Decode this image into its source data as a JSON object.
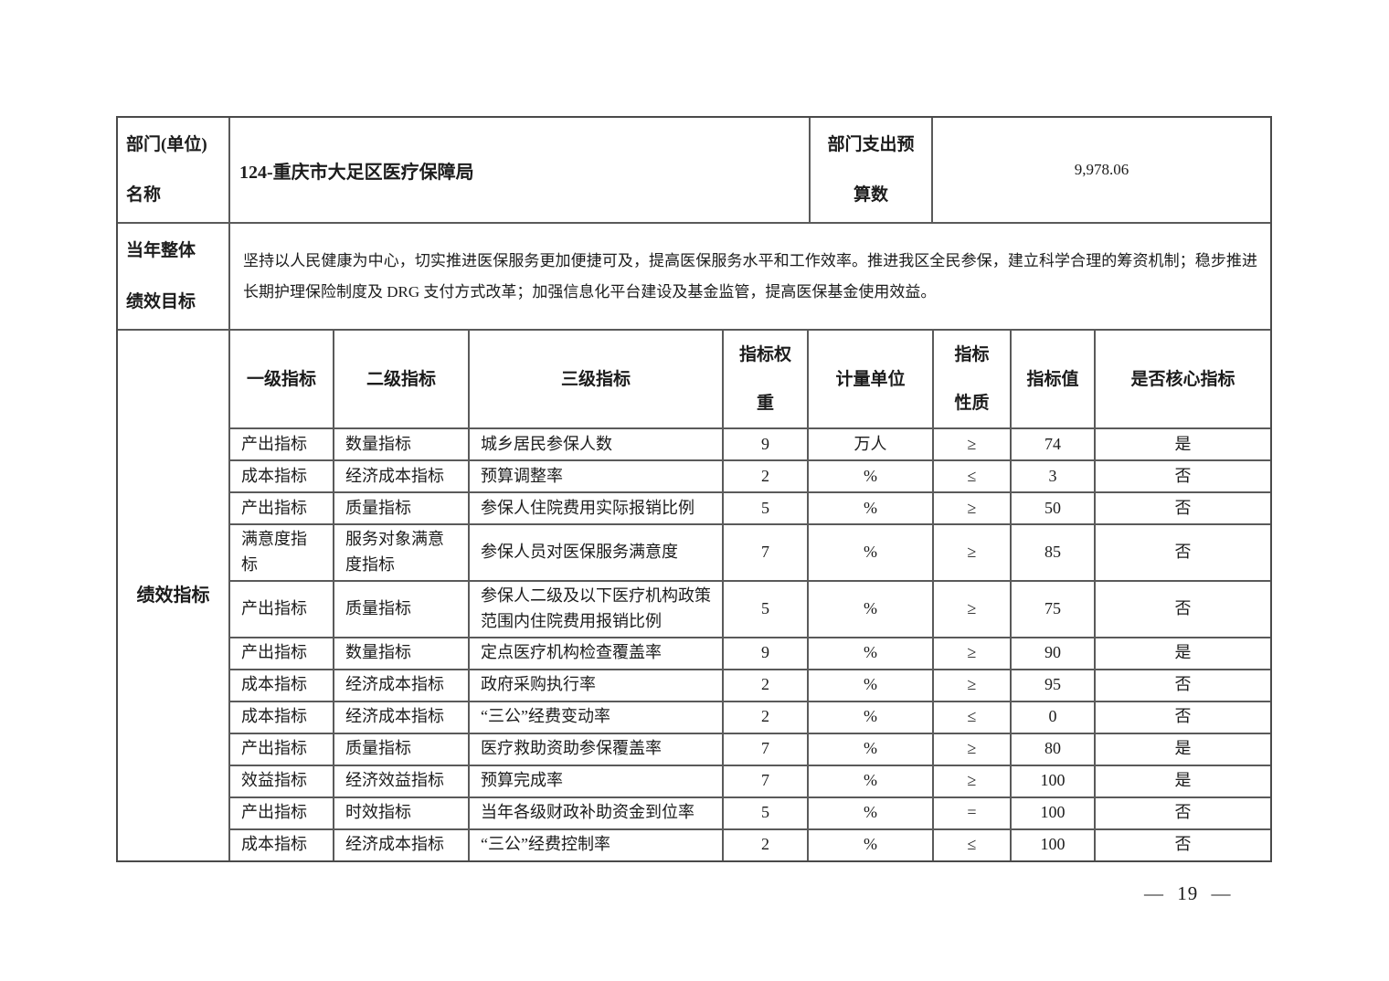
{
  "colors": {
    "border": "#5a5a5a",
    "text": "#1c1c1c",
    "background": "#ffffff"
  },
  "header": {
    "dept_label": "部门(单位)\n名称",
    "dept_value": "124-重庆市大足区医疗保障局",
    "budget_label": "部门支出预\n算数",
    "budget_value": "9,978.06",
    "goal_label": "当年整体\n绩效目标",
    "goal_text": "坚持以人民健康为中心，切实推进医保服务更加便捷可及，提高医保服务水平和工作效率。推进我区全民参保，建立科学合理的筹资机制；稳步推进长期护理保险制度及 DRG 支付方式改革；加强信息化平台建设及基金监管，提高医保基金使用效益。",
    "indicators_label": "绩效指标"
  },
  "indicators": {
    "columns": [
      "一级指标",
      "二级指标",
      "三级指标",
      "指标权\n重",
      "计量单位",
      "指标\n性质",
      "指标值",
      "是否核心指标"
    ],
    "rows": [
      [
        "产出指标",
        "数量指标",
        "城乡居民参保人数",
        "9",
        "万人",
        "≥",
        "74",
        "是"
      ],
      [
        "成本指标",
        "经济成本指标",
        "预算调整率",
        "2",
        "%",
        "≤",
        "3",
        "否"
      ],
      [
        "产出指标",
        "质量指标",
        "参保人住院费用实际报销比例",
        "5",
        "%",
        "≥",
        "50",
        "否"
      ],
      [
        "满意度指标",
        "服务对象满意度指标",
        "参保人员对医保服务满意度",
        "7",
        "%",
        "≥",
        "85",
        "否"
      ],
      [
        "产出指标",
        "质量指标",
        "参保人二级及以下医疗机构政策范围内住院费用报销比例",
        "5",
        "%",
        "≥",
        "75",
        "否"
      ],
      [
        "产出指标",
        "数量指标",
        "定点医疗机构检查覆盖率",
        "9",
        "%",
        "≥",
        "90",
        "是"
      ],
      [
        "成本指标",
        "经济成本指标",
        "政府采购执行率",
        "2",
        "%",
        "≥",
        "95",
        "否"
      ],
      [
        "成本指标",
        "经济成本指标",
        "“三公”经费变动率",
        "2",
        "%",
        "≤",
        "0",
        "否"
      ],
      [
        "产出指标",
        "质量指标",
        "医疗救助资助参保覆盖率",
        "7",
        "%",
        "≥",
        "80",
        "是"
      ],
      [
        "效益指标",
        "经济效益指标",
        "预算完成率",
        "7",
        "%",
        "≥",
        "100",
        "是"
      ],
      [
        "产出指标",
        "时效指标",
        "当年各级财政补助资金到位率",
        "5",
        "%",
        "=",
        "100",
        "否"
      ],
      [
        "成本指标",
        "经济成本指标",
        "“三公”经费控制率",
        "2",
        "%",
        "≤",
        "100",
        "否"
      ]
    ]
  },
  "page": {
    "page_number": "— 19 —"
  }
}
